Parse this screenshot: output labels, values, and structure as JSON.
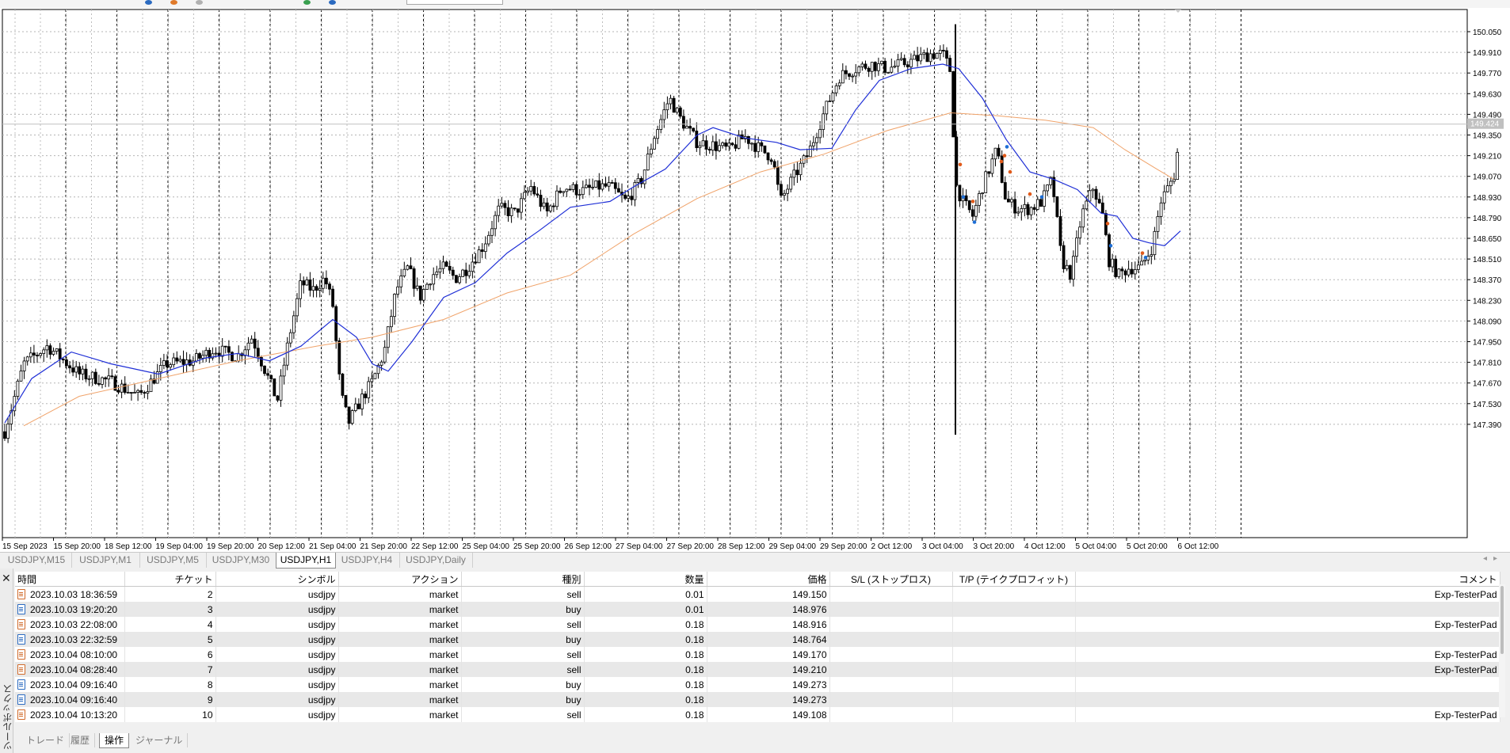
{
  "chart": {
    "symbol_label": "USDJPY,H1",
    "current_price": "149.424",
    "price_ticks": [
      "150.050",
      "149.910",
      "149.770",
      "149.630",
      "149.490",
      "149.350",
      "149.210",
      "149.070",
      "148.930",
      "148.790",
      "148.650",
      "148.510",
      "148.370",
      "148.230",
      "148.090",
      "147.950",
      "147.810",
      "147.670",
      "147.530",
      "147.390"
    ],
    "time_ticks": [
      "15 Sep 2023",
      "15 Sep 20:00",
      "18 Sep 12:00",
      "19 Sep 04:00",
      "19 Sep 20:00",
      "20 Sep 12:00",
      "21 Sep 04:00",
      "21 Sep 20:00",
      "22 Sep 12:00",
      "25 Sep 04:00",
      "25 Sep 20:00",
      "26 Sep 12:00",
      "27 Sep 04:00",
      "27 Sep 20:00",
      "28 Sep 12:00",
      "29 Sep 04:00",
      "29 Sep 20:00",
      "2 Oct 12:00",
      "3 Oct 04:00",
      "3 Oct 20:00",
      "4 Oct 12:00",
      "5 Oct 04:00",
      "5 Oct 20:00",
      "6 Oct 12:00"
    ],
    "colors": {
      "fast_ma": "#1f2fd6",
      "slow_ma": "#f0a36a",
      "candle": "#000000",
      "sell_marker": "#e05a1a",
      "buy_marker": "#1f6fd6"
    }
  },
  "chart_tabs": [
    "USDJPY,M15",
    "USDJPY,M1",
    "USDJPY,M5",
    "USDJPY,M30",
    "USDJPY,H1",
    "USDJPY,H4",
    "USDJPY,Daily"
  ],
  "active_chart_tab": "USDJPY,H1",
  "toolbox": {
    "close": "✕",
    "title": "ツールボックス",
    "columns": [
      "時間",
      "チケット",
      "シンボル",
      "アクション",
      "種別",
      "数量",
      "価格",
      "S/L (ストップロス)",
      "T/P (テイクプロフィット)",
      "コメント"
    ],
    "rows": [
      {
        "time": "2023.10.03 18:36:59",
        "ticket": "2",
        "symbol": "usdjpy",
        "action": "market",
        "type": "sell",
        "volume": "0.01",
        "price": "149.150",
        "sl": "",
        "tp": "",
        "comment": "Exp-TesterPad"
      },
      {
        "time": "2023.10.03 19:20:20",
        "ticket": "3",
        "symbol": "usdjpy",
        "action": "market",
        "type": "buy",
        "volume": "0.01",
        "price": "148.976",
        "sl": "",
        "tp": "",
        "comment": ""
      },
      {
        "time": "2023.10.03 22:08:00",
        "ticket": "4",
        "symbol": "usdjpy",
        "action": "market",
        "type": "sell",
        "volume": "0.18",
        "price": "148.916",
        "sl": "",
        "tp": "",
        "comment": "Exp-TesterPad"
      },
      {
        "time": "2023.10.03 22:32:59",
        "ticket": "5",
        "symbol": "usdjpy",
        "action": "market",
        "type": "buy",
        "volume": "0.18",
        "price": "148.764",
        "sl": "",
        "tp": "",
        "comment": ""
      },
      {
        "time": "2023.10.04 08:10:00",
        "ticket": "6",
        "symbol": "usdjpy",
        "action": "market",
        "type": "sell",
        "volume": "0.18",
        "price": "149.170",
        "sl": "",
        "tp": "",
        "comment": "Exp-TesterPad"
      },
      {
        "time": "2023.10.04 08:28:40",
        "ticket": "7",
        "symbol": "usdjpy",
        "action": "market",
        "type": "sell",
        "volume": "0.18",
        "price": "149.210",
        "sl": "",
        "tp": "",
        "comment": "Exp-TesterPad"
      },
      {
        "time": "2023.10.04 09:16:40",
        "ticket": "8",
        "symbol": "usdjpy",
        "action": "market",
        "type": "buy",
        "volume": "0.18",
        "price": "149.273",
        "sl": "",
        "tp": "",
        "comment": ""
      },
      {
        "time": "2023.10.04 09:16:40",
        "ticket": "9",
        "symbol": "usdjpy",
        "action": "market",
        "type": "buy",
        "volume": "0.18",
        "price": "149.273",
        "sl": "",
        "tp": "",
        "comment": ""
      },
      {
        "time": "2023.10.04 10:13:20",
        "ticket": "10",
        "symbol": "usdjpy",
        "action": "market",
        "type": "sell",
        "volume": "0.18",
        "price": "149.108",
        "sl": "",
        "tp": "",
        "comment": "Exp-TesterPad"
      }
    ]
  },
  "bottom_tabs": [
    "トレード",
    "履歴",
    "操作",
    "ジャーナル"
  ],
  "active_bottom_tab": "操作"
}
